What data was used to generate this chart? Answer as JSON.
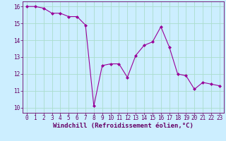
{
  "x": [
    0,
    1,
    2,
    3,
    4,
    5,
    6,
    7,
    8,
    9,
    10,
    11,
    12,
    13,
    14,
    15,
    16,
    17,
    18,
    19,
    20,
    21,
    22,
    23
  ],
  "y": [
    16.0,
    16.0,
    15.9,
    15.6,
    15.6,
    15.4,
    15.4,
    14.9,
    10.1,
    12.5,
    12.6,
    12.6,
    11.8,
    13.1,
    13.7,
    13.9,
    14.8,
    13.6,
    12.0,
    11.9,
    11.1,
    11.5,
    11.4,
    11.3
  ],
  "line_color": "#990099",
  "marker": "D",
  "marker_size": 2,
  "bg_color": "#cceeff",
  "grid_color": "#aaddcc",
  "xlabel": "Windchill (Refroidissement éolien,°C)",
  "ylabel": "",
  "xlim": [
    -0.5,
    23.5
  ],
  "ylim": [
    9.7,
    16.3
  ],
  "yticks": [
    10,
    11,
    12,
    13,
    14,
    15,
    16
  ],
  "xticks": [
    0,
    1,
    2,
    3,
    4,
    5,
    6,
    7,
    8,
    9,
    10,
    11,
    12,
    13,
    14,
    15,
    16,
    17,
    18,
    19,
    20,
    21,
    22,
    23
  ],
  "xlabel_color": "#660066",
  "tick_color": "#660066",
  "axis_color": "#660066",
  "label_fontsize": 6.5,
  "tick_fontsize": 5.5
}
